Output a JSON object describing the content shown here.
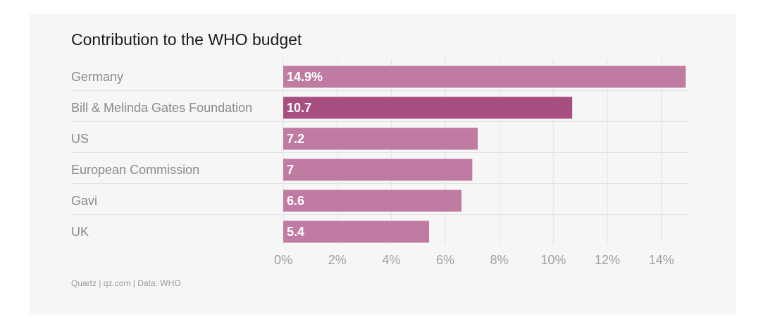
{
  "chart_data": {
    "type": "bar",
    "orientation": "horizontal",
    "title": "Contribution to the WHO budget",
    "source": "Quartz | qz.com | Data: WHO",
    "categories": [
      "Germany",
      "Bill & Melinda Gates Foundation",
      "US",
      "European Commission",
      "Gavi",
      "UK"
    ],
    "values": [
      14.9,
      10.7,
      7.2,
      7,
      6.6,
      5.4
    ],
    "data_labels": [
      "14.9%",
      "10.7",
      "7.2",
      "7",
      "6.6",
      "5.4"
    ],
    "xlim": [
      0,
      15
    ],
    "xticks": [
      0,
      2,
      4,
      6,
      8,
      10,
      12,
      14
    ],
    "xtick_labels": [
      "0%",
      "2%",
      "4%",
      "6%",
      "8%",
      "10%",
      "12%",
      "14%"
    ],
    "xlabel": "",
    "ylabel": "",
    "grid": true,
    "bar_color": "#c07ba3",
    "highlight_color": "#a84f82",
    "highlight_index": 1
  }
}
